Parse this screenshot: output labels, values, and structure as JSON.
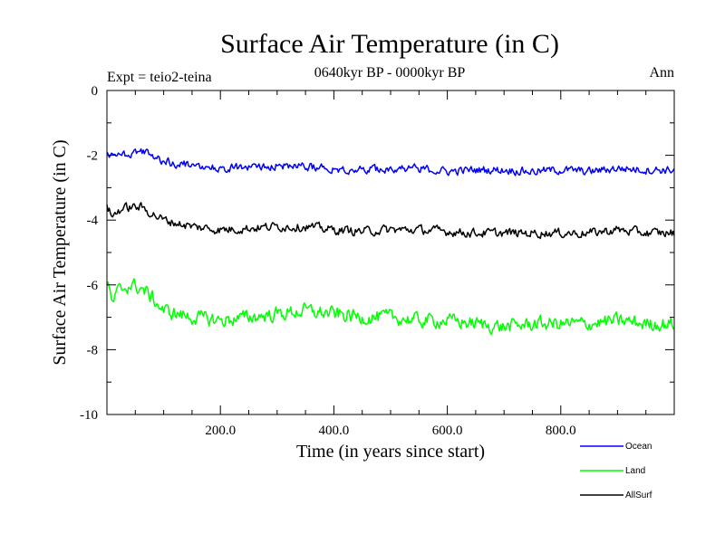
{
  "chart_data": {
    "type": "line",
    "title": "Surface Air Temperature (in C)",
    "subtitle": "0640kyr BP - 0000kyr BP",
    "left_label": "Expt = teio2-teina",
    "right_label": "Ann",
    "xlabel": "Time (in years since start)",
    "ylabel": "Surface Air Temperature (in C)",
    "xlim": [
      0,
      1000
    ],
    "ylim": [
      -10,
      0
    ],
    "x_ticks": [
      {
        "value": 200,
        "label": "200.0"
      },
      {
        "value": 400,
        "label": "400.0"
      },
      {
        "value": 600,
        "label": "600.0"
      },
      {
        "value": 800,
        "label": "800.0"
      }
    ],
    "y_ticks": [
      {
        "value": 0,
        "label": "0"
      },
      {
        "value": -2,
        "label": "-2"
      },
      {
        "value": -4,
        "label": "-4"
      },
      {
        "value": -6,
        "label": "-6"
      },
      {
        "value": -8,
        "label": "-8"
      },
      {
        "value": -10,
        "label": "-10"
      }
    ],
    "legend_position": "bottom-right",
    "series": [
      {
        "name": "Ocean",
        "color": "#0000ff",
        "x": [
          0,
          10,
          20,
          40,
          60,
          80,
          100,
          150,
          200,
          250,
          300,
          350,
          400,
          450,
          500,
          550,
          600,
          650,
          700,
          750,
          800,
          850,
          900,
          950,
          1000
        ],
        "values": [
          -2.0,
          -2.05,
          -2.0,
          -1.95,
          -1.85,
          -2.05,
          -2.2,
          -2.3,
          -2.4,
          -2.35,
          -2.3,
          -2.35,
          -2.4,
          -2.45,
          -2.4,
          -2.4,
          -2.5,
          -2.45,
          -2.45,
          -2.5,
          -2.45,
          -2.5,
          -2.4,
          -2.45,
          -2.45
        ]
      },
      {
        "name": "Land",
        "color": "#00ff00",
        "x": [
          0,
          10,
          20,
          40,
          60,
          80,
          100,
          150,
          200,
          250,
          300,
          350,
          400,
          450,
          500,
          550,
          600,
          650,
          700,
          750,
          800,
          850,
          900,
          950,
          1000
        ],
        "values": [
          -5.9,
          -6.6,
          -6.2,
          -6.0,
          -6.1,
          -6.4,
          -6.8,
          -7.0,
          -7.1,
          -7.0,
          -6.9,
          -6.8,
          -6.9,
          -7.0,
          -7.0,
          -7.1,
          -7.1,
          -7.2,
          -7.3,
          -7.2,
          -7.2,
          -7.2,
          -7.1,
          -7.2,
          -7.2
        ]
      },
      {
        "name": "AllSurf",
        "color": "#000000",
        "x": [
          0,
          10,
          20,
          40,
          60,
          80,
          100,
          150,
          200,
          250,
          300,
          350,
          400,
          450,
          500,
          550,
          600,
          650,
          700,
          750,
          800,
          850,
          900,
          950,
          1000
        ],
        "values": [
          -3.6,
          -3.9,
          -3.7,
          -3.6,
          -3.6,
          -3.8,
          -4.0,
          -4.2,
          -4.3,
          -4.25,
          -4.2,
          -4.2,
          -4.3,
          -4.35,
          -4.3,
          -4.3,
          -4.35,
          -4.4,
          -4.4,
          -4.4,
          -4.4,
          -4.4,
          -4.3,
          -4.4,
          -4.4
        ]
      }
    ]
  }
}
